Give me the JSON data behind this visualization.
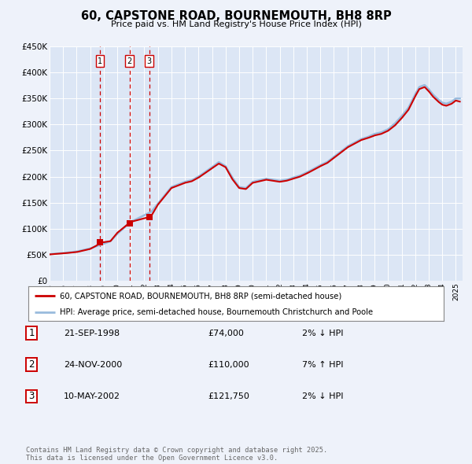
{
  "title": "60, CAPSTONE ROAD, BOURNEMOUTH, BH8 8RP",
  "subtitle": "Price paid vs. HM Land Registry's House Price Index (HPI)",
  "background_color": "#eef2fa",
  "plot_bg_color": "#dce6f5",
  "hpi_color": "#99bbdd",
  "price_color": "#cc0000",
  "vline_color": "#cc0000",
  "transactions": [
    {
      "id": 1,
      "date_num": 1998.72,
      "price": 74000,
      "pct": "2%",
      "dir": "↓",
      "date_str": "21-SEP-1998"
    },
    {
      "id": 2,
      "date_num": 2000.9,
      "price": 110000,
      "pct": "7%",
      "dir": "↑",
      "date_str": "24-NOV-2000"
    },
    {
      "id": 3,
      "date_num": 2002.36,
      "price": 121750,
      "pct": "2%",
      "dir": "↓",
      "date_str": "10-MAY-2002"
    }
  ],
  "ylim": [
    0,
    450000
  ],
  "xlim_start": 1995.0,
  "xlim_end": 2025.5,
  "yticks": [
    0,
    50000,
    100000,
    150000,
    200000,
    250000,
    300000,
    350000,
    400000,
    450000
  ],
  "ytick_labels": [
    "£0",
    "£50K",
    "£100K",
    "£150K",
    "£200K",
    "£250K",
    "£300K",
    "£350K",
    "£400K",
    "£450K"
  ],
  "legend_label_price": "60, CAPSTONE ROAD, BOURNEMOUTH, BH8 8RP (semi-detached house)",
  "legend_label_hpi": "HPI: Average price, semi-detached house, Bournemouth Christchurch and Poole",
  "footer": "Contains HM Land Registry data © Crown copyright and database right 2025.\nThis data is licensed under the Open Government Licence v3.0.",
  "hpi_anchors": [
    [
      1995.0,
      51000
    ],
    [
      1996.0,
      53000
    ],
    [
      1997.0,
      56000
    ],
    [
      1998.0,
      62000
    ],
    [
      1999.0,
      71000
    ],
    [
      1999.5,
      76000
    ],
    [
      2000.0,
      90000
    ],
    [
      2001.0,
      113000
    ],
    [
      2002.0,
      126000
    ],
    [
      2002.5,
      132000
    ],
    [
      2003.0,
      148000
    ],
    [
      2004.0,
      180000
    ],
    [
      2005.0,
      190000
    ],
    [
      2005.5,
      193000
    ],
    [
      2006.0,
      200000
    ],
    [
      2007.0,
      218000
    ],
    [
      2007.5,
      228000
    ],
    [
      2008.0,
      220000
    ],
    [
      2008.5,
      198000
    ],
    [
      2009.0,
      180000
    ],
    [
      2009.5,
      178000
    ],
    [
      2010.0,
      190000
    ],
    [
      2010.5,
      193000
    ],
    [
      2011.0,
      196000
    ],
    [
      2011.5,
      194000
    ],
    [
      2012.0,
      192000
    ],
    [
      2012.5,
      194000
    ],
    [
      2013.0,
      198000
    ],
    [
      2013.5,
      202000
    ],
    [
      2014.0,
      208000
    ],
    [
      2014.5,
      215000
    ],
    [
      2015.0,
      222000
    ],
    [
      2015.5,
      228000
    ],
    [
      2016.0,
      238000
    ],
    [
      2016.5,
      248000
    ],
    [
      2017.0,
      258000
    ],
    [
      2017.5,
      265000
    ],
    [
      2018.0,
      272000
    ],
    [
      2018.5,
      276000
    ],
    [
      2019.0,
      282000
    ],
    [
      2019.5,
      285000
    ],
    [
      2020.0,
      291000
    ],
    [
      2020.5,
      302000
    ],
    [
      2021.0,
      316000
    ],
    [
      2021.5,
      332000
    ],
    [
      2022.0,
      358000
    ],
    [
      2022.3,
      372000
    ],
    [
      2022.7,
      376000
    ],
    [
      2023.0,
      368000
    ],
    [
      2023.3,
      358000
    ],
    [
      2023.7,
      348000
    ],
    [
      2024.0,
      342000
    ],
    [
      2024.3,
      340000
    ],
    [
      2024.7,
      344000
    ],
    [
      2025.0,
      350000
    ],
    [
      2025.3,
      350000
    ]
  ],
  "price_anchors": [
    [
      1995.0,
      50500
    ],
    [
      1996.0,
      52500
    ],
    [
      1997.0,
      55000
    ],
    [
      1998.0,
      61000
    ],
    [
      1998.5,
      68000
    ],
    [
      1998.72,
      74000
    ],
    [
      1999.0,
      74000
    ],
    [
      1999.5,
      76000
    ],
    [
      2000.0,
      92000
    ],
    [
      2000.7,
      107000
    ],
    [
      2000.9,
      110000
    ],
    [
      2001.0,
      113000
    ],
    [
      2002.0,
      120000
    ],
    [
      2002.36,
      121750
    ],
    [
      2002.5,
      124000
    ],
    [
      2003.0,
      146000
    ],
    [
      2004.0,
      178000
    ],
    [
      2005.0,
      188000
    ],
    [
      2005.5,
      191000
    ],
    [
      2006.0,
      198000
    ],
    [
      2007.0,
      216000
    ],
    [
      2007.5,
      225000
    ],
    [
      2008.0,
      218000
    ],
    [
      2008.5,
      195000
    ],
    [
      2009.0,
      178000
    ],
    [
      2009.5,
      176000
    ],
    [
      2010.0,
      188000
    ],
    [
      2010.5,
      191000
    ],
    [
      2011.0,
      194000
    ],
    [
      2011.5,
      192000
    ],
    [
      2012.0,
      190000
    ],
    [
      2012.5,
      192000
    ],
    [
      2013.0,
      196000
    ],
    [
      2013.5,
      200000
    ],
    [
      2014.0,
      206000
    ],
    [
      2014.5,
      213000
    ],
    [
      2015.0,
      220000
    ],
    [
      2015.5,
      226000
    ],
    [
      2016.0,
      236000
    ],
    [
      2016.5,
      246000
    ],
    [
      2017.0,
      256000
    ],
    [
      2017.5,
      263000
    ],
    [
      2018.0,
      270000
    ],
    [
      2018.5,
      274000
    ],
    [
      2019.0,
      279000
    ],
    [
      2019.5,
      282000
    ],
    [
      2020.0,
      288000
    ],
    [
      2020.5,
      298000
    ],
    [
      2021.0,
      312000
    ],
    [
      2021.5,
      328000
    ],
    [
      2022.0,
      354000
    ],
    [
      2022.3,
      368000
    ],
    [
      2022.7,
      372000
    ],
    [
      2023.0,
      364000
    ],
    [
      2023.3,
      354000
    ],
    [
      2023.7,
      344000
    ],
    [
      2024.0,
      338000
    ],
    [
      2024.3,
      336000
    ],
    [
      2024.7,
      340000
    ],
    [
      2025.0,
      346000
    ],
    [
      2025.3,
      344000
    ]
  ]
}
